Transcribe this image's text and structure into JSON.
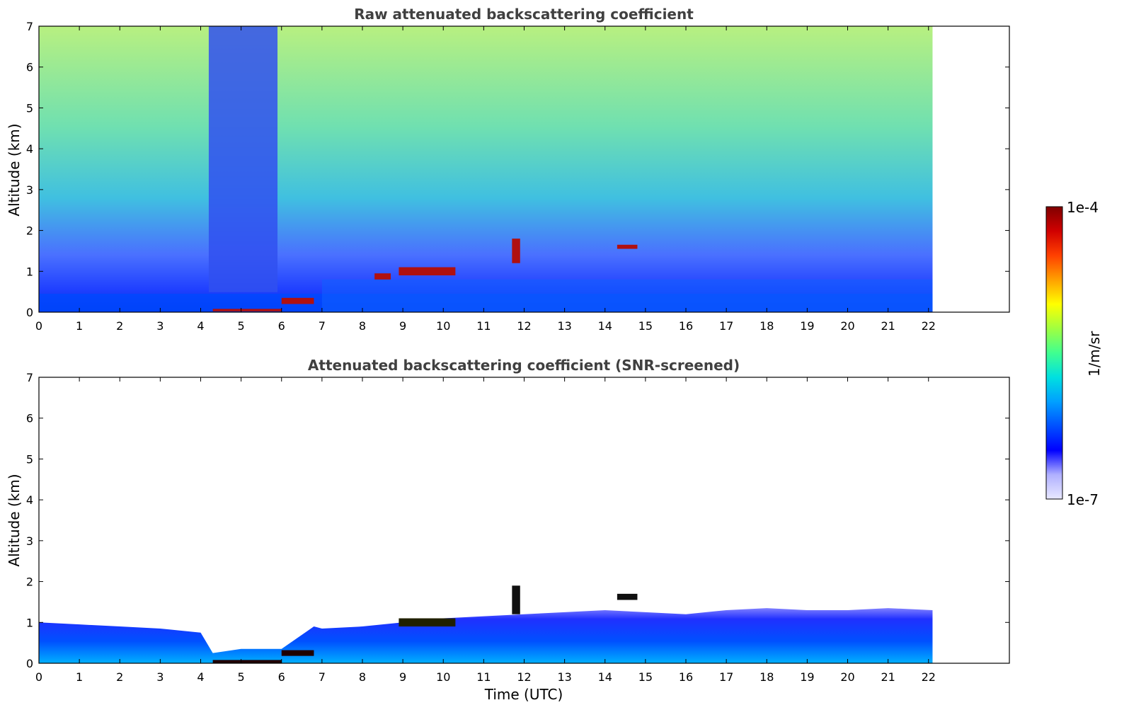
{
  "chart_data": [
    {
      "type": "heatmap",
      "title": "Raw attenuated backscattering coefficient",
      "xlabel": "",
      "ylabel": "Altitude (km)",
      "xlim": [
        0,
        24
      ],
      "ylim": [
        0,
        7
      ],
      "data_xlim": [
        0,
        22.1
      ],
      "xticks": [
        "0",
        "1",
        "2",
        "3",
        "4",
        "5",
        "6",
        "7",
        "8",
        "9",
        "10",
        "11",
        "12",
        "13",
        "14",
        "15",
        "16",
        "17",
        "18",
        "19",
        "20",
        "21",
        "22"
      ],
      "yticks": [
        "0",
        "1",
        "2",
        "3",
        "4",
        "5",
        "6",
        "7"
      ],
      "features": [
        {
          "x": [
            4.3,
            6.0
          ],
          "y": [
            0.02,
            0.08
          ],
          "level": "high"
        },
        {
          "x": [
            6.0,
            6.8
          ],
          "y": [
            0.2,
            0.35
          ],
          "level": "high"
        },
        {
          "x": [
            8.3,
            8.7
          ],
          "y": [
            0.8,
            0.95
          ],
          "level": "high"
        },
        {
          "x": [
            8.9,
            10.3
          ],
          "y": [
            0.9,
            1.1
          ],
          "level": "high"
        },
        {
          "x": [
            11.7,
            11.9
          ],
          "y": [
            1.2,
            1.8
          ],
          "level": "high"
        },
        {
          "x": [
            14.3,
            14.8
          ],
          "y": [
            1.55,
            1.65
          ],
          "level": "high"
        }
      ]
    },
    {
      "type": "heatmap",
      "title": "Attenuated backscattering coefficient (SNR-screened)",
      "xlabel": "Time (UTC)",
      "ylabel": "Altitude (km)",
      "xlim": [
        0,
        24
      ],
      "ylim": [
        0,
        7
      ],
      "data_xlim": [
        0,
        22.1
      ],
      "xticks": [
        "0",
        "1",
        "2",
        "3",
        "4",
        "5",
        "6",
        "7",
        "8",
        "9",
        "10",
        "11",
        "12",
        "13",
        "14",
        "15",
        "16",
        "17",
        "18",
        "19",
        "20",
        "21",
        "22"
      ],
      "yticks": [
        "0",
        "1",
        "2",
        "3",
        "4",
        "5",
        "6",
        "7"
      ],
      "boundary_x": [
        0,
        1,
        2,
        3,
        4,
        4.3,
        5,
        6,
        6.8,
        7,
        8,
        9,
        10,
        11,
        12,
        13,
        14,
        15,
        16,
        17,
        18,
        19,
        20,
        21,
        22.1
      ],
      "boundary_y": [
        1.0,
        0.95,
        0.9,
        0.85,
        0.75,
        0.25,
        0.35,
        0.35,
        0.9,
        0.85,
        0.9,
        1.0,
        1.1,
        1.15,
        1.2,
        1.25,
        1.3,
        1.25,
        1.2,
        1.3,
        1.35,
        1.3,
        1.3,
        1.35,
        1.3
      ]
    }
  ],
  "colorbar": {
    "label": "1/m/sr",
    "max_label": "1e-4",
    "min_label": "1e-7",
    "colors": [
      "#e8e8ff",
      "#b0b0ff",
      "#0000ff",
      "#0050ff",
      "#00a0ff",
      "#00e0e0",
      "#40ff90",
      "#a0ff40",
      "#ffff00",
      "#ffa000",
      "#ff4000",
      "#d00000",
      "#800000"
    ]
  }
}
